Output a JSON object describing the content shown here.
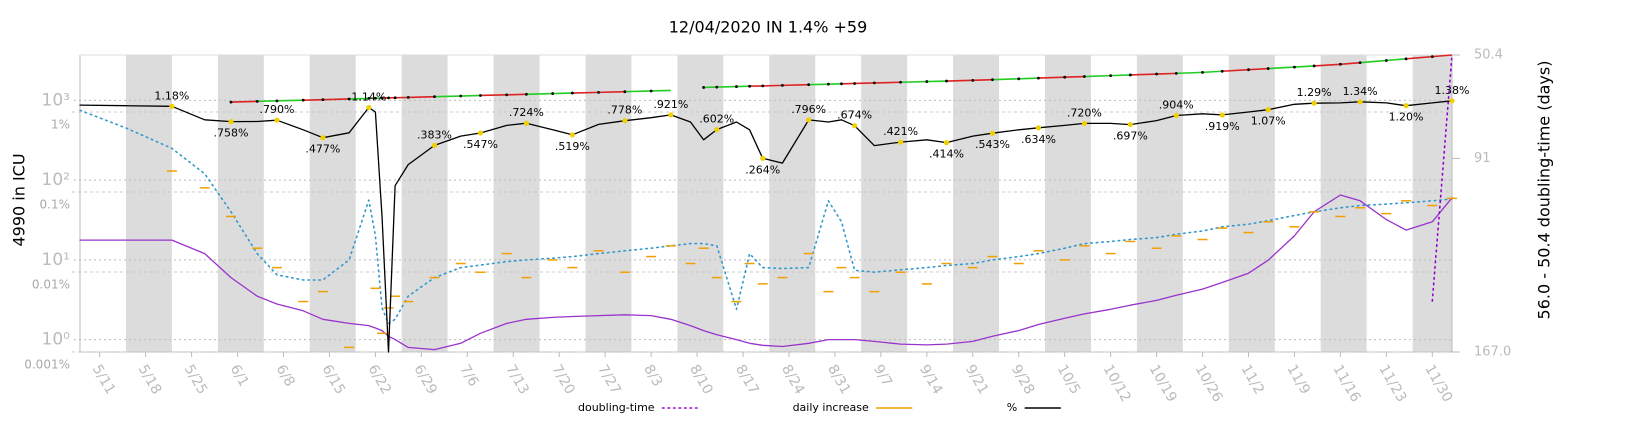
{
  "chart_data": {
    "type": "line",
    "title": "12/04/2020 IN 1.4% +59",
    "ylabel": "4990 in ICU",
    "y2label": "56.0 - 50.4 doubling-time (days)",
    "x": [
      "5/8",
      "5/15",
      "5/22",
      "5/27",
      "5/31",
      "6/4",
      "6/7",
      "6/11",
      "6/14",
      "6/18",
      "6/21",
      "6/22",
      "6/23",
      "6/24",
      "6/25",
      "6/27",
      "7/1",
      "7/5",
      "7/8",
      "7/12",
      "7/15",
      "7/19",
      "7/22",
      "7/26",
      "7/30",
      "8/3",
      "8/6",
      "8/9",
      "8/11",
      "8/13",
      "8/16",
      "8/18",
      "8/20",
      "8/23",
      "8/27",
      "8/30",
      "9/1",
      "9/3",
      "9/6",
      "9/10",
      "9/14",
      "9/17",
      "9/21",
      "9/24",
      "9/28",
      "10/1",
      "10/5",
      "10/8",
      "10/12",
      "10/15",
      "10/19",
      "10/22",
      "10/26",
      "10/29",
      "11/2",
      "11/5",
      "11/9",
      "11/12",
      "11/16",
      "11/19",
      "11/23",
      "11/26",
      "11/30",
      "12/3"
    ],
    "xlim": [
      "5/8",
      "12/3"
    ],
    "xticks": [
      "5/11",
      "5/18",
      "5/25",
      "6/1",
      "6/8",
      "6/15",
      "6/22",
      "6/29",
      "7/6",
      "7/13",
      "7/20",
      "7/27",
      "8/3",
      "8/10",
      "8/17",
      "8/24",
      "8/31",
      "9/7",
      "9/14",
      "9/21",
      "9/28",
      "10/5",
      "10/12",
      "10/19",
      "10/26",
      "11/2",
      "11/9",
      "11/16",
      "11/23",
      "11/30"
    ],
    "ylim": [
      0.7,
      3700
    ],
    "ylog": true,
    "yticks": [
      {
        "value": 1,
        "label": "10⁰"
      },
      {
        "value": 10,
        "label": "10¹"
      },
      {
        "value": 100,
        "label": "10²"
      },
      {
        "value": 1000,
        "label": "10³"
      }
    ],
    "y3lim": [
      0.001,
      5.16
    ],
    "y3log": true,
    "y3ticks": [
      {
        "value": 0.001,
        "label": "0.001%"
      },
      {
        "value": 0.01,
        "label": "0.01%"
      },
      {
        "value": 0.1,
        "label": "0.1%"
      },
      {
        "value": 1,
        "label": "1%"
      }
    ],
    "y2lim": [
      167,
      50.4
    ],
    "y2ticks": [
      50.4,
      91,
      {
        "value": 167,
        "label": "167.0"
      }
    ],
    "grid": true,
    "legend": "bottom",
    "series": [
      {
        "name": "doubling-time",
        "color": "#9400d3",
        "style": "dotted",
        "axis": "y2",
        "values": [
          null,
          null,
          null,
          null,
          null,
          null,
          null,
          null,
          null,
          null,
          null,
          null,
          null,
          null,
          null,
          null,
          null,
          null,
          null,
          null,
          null,
          null,
          null,
          null,
          null,
          null,
          null,
          null,
          null,
          null,
          null,
          null,
          null,
          null,
          null,
          null,
          null,
          null,
          null,
          null,
          null,
          null,
          null,
          null,
          null,
          null,
          null,
          null,
          null,
          null,
          null,
          null,
          null,
          null,
          null,
          null,
          null,
          null,
          null,
          null,
          null,
          null,
          147,
          50.4
        ]
      },
      {
        "name": "daily increase",
        "color": "#f0a000",
        "style": "ticks",
        "values": [
          null,
          null,
          130,
          80,
          35,
          14,
          8,
          3,
          4,
          0.8,
          null,
          4.4,
          1.2,
          2.5,
          3.5,
          3,
          6,
          9,
          7,
          12,
          6,
          10,
          8,
          13,
          7,
          11,
          15,
          9,
          14,
          6,
          3,
          9,
          5,
          6,
          12,
          4,
          8,
          6,
          4,
          7,
          5,
          9,
          8,
          11,
          9,
          13,
          10,
          15,
          12,
          17,
          14,
          20,
          18,
          25,
          22,
          30,
          26,
          40,
          35,
          45,
          38,
          55,
          48,
          59
        ]
      },
      {
        "name": "%",
        "color": "#000000",
        "axis": "y3",
        "marker_color": "#f0d000",
        "values": [
          1.22,
          1.2,
          1.18,
          0.8,
          0.758,
          0.76,
          0.79,
          0.6,
          0.477,
          0.55,
          1.14,
          1.0,
          0.05,
          0.001,
          0.12,
          0.22,
          0.383,
          0.5,
          0.547,
          0.68,
          0.724,
          0.6,
          0.519,
          0.7,
          0.778,
          0.85,
          0.921,
          0.75,
          0.45,
          0.602,
          0.75,
          0.6,
          0.264,
          0.23,
          0.796,
          0.75,
          0.8,
          0.674,
          0.38,
          0.421,
          0.45,
          0.414,
          0.5,
          0.543,
          0.6,
          0.634,
          0.68,
          0.72,
          0.72,
          0.697,
          0.78,
          0.904,
          0.95,
          0.919,
          1.0,
          1.07,
          1.25,
          1.29,
          1.3,
          1.34,
          1.3,
          1.2,
          1.3,
          1.38
        ],
        "value_labels": [
          null,
          null,
          "1.18%",
          null,
          ".758%",
          null,
          ".790%",
          null,
          ".477%",
          null,
          "1.14%",
          null,
          null,
          null,
          null,
          null,
          ".383%",
          null,
          ".547%",
          null,
          ".724%",
          null,
          ".519%",
          null,
          ".778%",
          null,
          ".921%",
          null,
          null,
          ".602%",
          null,
          null,
          ".264%",
          null,
          ".796%",
          null,
          null,
          ".674%",
          null,
          ".421%",
          null,
          ".414%",
          null,
          ".543%",
          null,
          ".634%",
          null,
          ".720%",
          null,
          ".697%",
          null,
          ".904%",
          null,
          ".919%",
          null,
          "1.07%",
          null,
          "1.29%",
          null,
          "1.34%",
          null,
          "1.20%",
          null,
          "1.38%"
        ]
      },
      {
        "colors": [
          "#22cc22",
          "#dd2222"
        ],
        "values": [
          null,
          null,
          null,
          null,
          950,
          970,
          985,
          1005,
          1020,
          1040,
          1057,
          1062,
          1067,
          1072,
          1077,
          1088,
          1110,
          1132,
          1150,
          1173,
          1190,
          1215,
          1233,
          1258,
          1283,
          1310,
          1330,
          null,
          1450,
          1465,
          1487,
          1502,
          1517,
          1540,
          1571,
          1595,
          1611,
          1627,
          1652,
          1685,
          1719,
          1745,
          1780,
          1815,
          1862,
          1899,
          1949,
          1988,
          2040,
          2080,
          2135,
          2177,
          2240,
          2315,
          2420,
          2500,
          2610,
          2700,
          2830,
          2967,
          3160,
          3313,
          3530,
          3700
        ]
      },
      {
        "color": "#3399cc",
        "style": "dotted",
        "values": [
          750,
          450,
          250,
          120,
          40,
          12,
          6.5,
          5.6,
          5.6,
          10,
          56,
          20,
          2.5,
          1.6,
          1.8,
          3.5,
          6,
          8,
          8.6,
          9.5,
          10,
          10.5,
          11,
          12,
          13,
          14,
          15,
          16,
          16,
          15,
          2.4,
          12,
          8,
          7.8,
          8,
          55,
          30,
          7.4,
          7,
          7.5,
          8,
          8.5,
          9,
          10,
          11,
          12,
          14,
          16,
          17,
          18,
          19,
          21,
          23,
          26,
          28,
          31,
          36,
          40,
          45,
          48,
          50,
          52,
          55,
          58
        ]
      },
      {
        "color": "#9933cc",
        "values": [
          17.7,
          17.7,
          17.7,
          12,
          6,
          3.5,
          2.8,
          2.3,
          1.8,
          1.6,
          1.5,
          1.4,
          1.3,
          1.1,
          1.0,
          0.8,
          0.75,
          0.9,
          1.2,
          1.6,
          1.8,
          1.9,
          1.95,
          2.0,
          2.05,
          2.0,
          1.8,
          1.5,
          1.3,
          1.15,
          1.0,
          0.9,
          0.85,
          0.82,
          0.9,
          1.0,
          1.0,
          1.0,
          0.95,
          0.88,
          0.86,
          0.88,
          0.95,
          1.1,
          1.3,
          1.55,
          1.85,
          2.1,
          2.4,
          2.7,
          3.1,
          3.6,
          4.3,
          5.2,
          6.8,
          9.9,
          20,
          40,
          65,
          55,
          32,
          23.6,
          30,
          60
        ]
      }
    ]
  }
}
